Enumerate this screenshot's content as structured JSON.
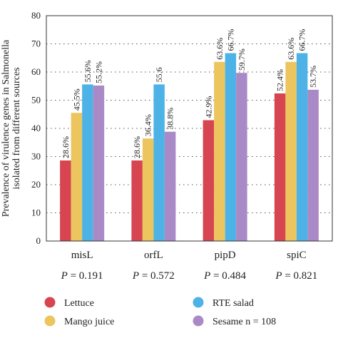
{
  "chart_data": {
    "type": "bar",
    "ylabel_lines": [
      "Prevalence of virulence genes in Salmonella",
      "isolated from different sources"
    ],
    "ylim": [
      0,
      80
    ],
    "yticks": [
      0,
      10,
      20,
      30,
      40,
      50,
      60,
      70,
      80
    ],
    "grid": "dotted horizontal",
    "categories": [
      "misL",
      "orfL",
      "pipD",
      "spiC"
    ],
    "p_values": [
      "0.191",
      "0.572",
      "0.484",
      "0.821"
    ],
    "p_prefix": "P",
    "series": [
      {
        "name": "Lettuce",
        "color": "#d64550",
        "values": [
          28.6,
          28.6,
          42.9,
          52.4
        ],
        "labels": [
          "28.6%",
          "28.6%",
          "42.9%",
          "52.4%"
        ]
      },
      {
        "name": "Mango juice",
        "color": "#ecc55f",
        "values": [
          45.5,
          36.4,
          63.6,
          63.6
        ],
        "labels": [
          "45.5%",
          "36.4%",
          "63.6%",
          "63.6%"
        ]
      },
      {
        "name": "RTE salad",
        "color": "#4db3e6",
        "values": [
          55.6,
          55.6,
          66.7,
          66.7
        ],
        "labels": [
          "55.6%",
          "55.6",
          "66.7%",
          "66.7%"
        ]
      },
      {
        "name": "Sesame n = 108",
        "color": "#a98ac6",
        "values": [
          55.2,
          38.8,
          59.7,
          53.7
        ],
        "labels": [
          "55.2%",
          "38.8%",
          "59.7%",
          "53.7%"
        ]
      }
    ],
    "legend_position": "bottom"
  }
}
